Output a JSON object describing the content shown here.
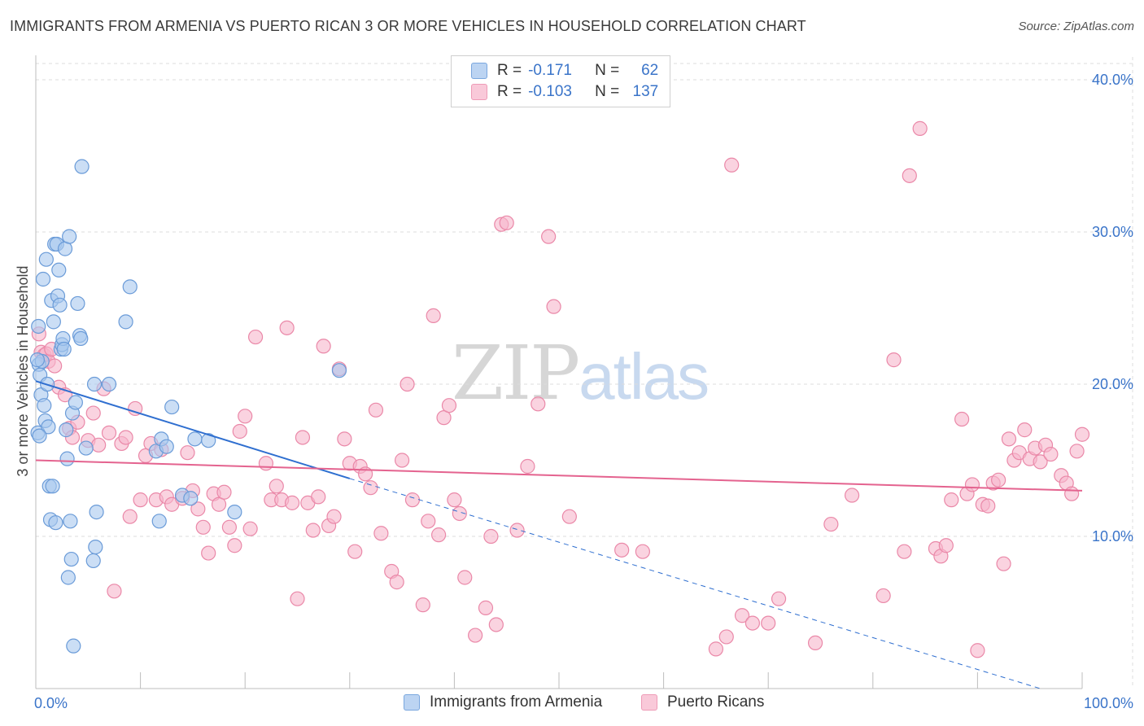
{
  "title": "IMMIGRANTS FROM ARMENIA VS PUERTO RICAN 3 OR MORE VEHICLES IN HOUSEHOLD CORRELATION CHART",
  "source": "Source: ZipAtlas.com",
  "watermark": {
    "zip": "ZIP",
    "atlas": "atlas"
  },
  "legend": {
    "rows": [
      {
        "r_label": "R =",
        "r_value": "-0.171",
        "n_label": "N =",
        "n_value": "62"
      },
      {
        "r_label": "R =",
        "r_value": "-0.103",
        "n_label": "N =",
        "n_value": "137"
      }
    ]
  },
  "colors": {
    "armenia_fill": "#a9c8ee",
    "armenia_stroke": "#6a9bd8",
    "armenia_line": "#2f6fd0",
    "pr_fill": "#f6b5cb",
    "pr_stroke": "#ea88a8",
    "pr_line": "#e4638f",
    "axis_label": "#3a74c9",
    "grid": "#dcdcdc"
  },
  "chart_data": {
    "type": "scatter",
    "title": "IMMIGRANTS FROM ARMENIA VS PUERTO RICAN 3 OR MORE VEHICLES IN HOUSEHOLD CORRELATION CHART",
    "xlabel": "",
    "ylabel": "3 or more Vehicles in Household",
    "xlim": [
      0,
      100
    ],
    "ylim": [
      0,
      41.5
    ],
    "x_tick_labels": [
      "0.0%",
      "100.0%"
    ],
    "y_ticks": [
      10,
      20,
      30,
      40
    ],
    "y_tick_labels": [
      "10.0%",
      "20.0%",
      "30.0%",
      "40.0%"
    ],
    "grid": true,
    "series": [
      {
        "name": "Immigrants from Armenia",
        "r": -0.171,
        "n": 62,
        "trend": {
          "x0": 0,
          "y0": 20.2,
          "x1": 30,
          "y1": 13.8,
          "dashed_to_x": 96,
          "dashed_y_end": 0
        },
        "points": [
          [
            0.2,
            16.8
          ],
          [
            0.3,
            21.3
          ],
          [
            0.4,
            20.6
          ],
          [
            0.5,
            19.3
          ],
          [
            0.6,
            21.5
          ],
          [
            0.7,
            26.9
          ],
          [
            0.8,
            18.6
          ],
          [
            0.9,
            17.6
          ],
          [
            1.0,
            28.2
          ],
          [
            1.1,
            20.0
          ],
          [
            1.2,
            17.2
          ],
          [
            1.3,
            13.3
          ],
          [
            1.4,
            11.1
          ],
          [
            1.5,
            25.5
          ],
          [
            1.6,
            13.3
          ],
          [
            1.7,
            24.1
          ],
          [
            1.8,
            29.2
          ],
          [
            1.9,
            10.9
          ],
          [
            2.0,
            29.2
          ],
          [
            2.1,
            25.8
          ],
          [
            2.2,
            27.5
          ],
          [
            2.3,
            25.2
          ],
          [
            2.4,
            22.3
          ],
          [
            2.5,
            22.6
          ],
          [
            2.6,
            23.0
          ],
          [
            2.7,
            22.3
          ],
          [
            2.8,
            28.9
          ],
          [
            2.9,
            17.0
          ],
          [
            3.0,
            15.1
          ],
          [
            3.1,
            7.3
          ],
          [
            3.2,
            29.7
          ],
          [
            3.3,
            11.0
          ],
          [
            3.4,
            8.5
          ],
          [
            3.5,
            18.1
          ],
          [
            3.6,
            2.8
          ],
          [
            3.8,
            18.8
          ],
          [
            4.0,
            25.3
          ],
          [
            4.2,
            23.2
          ],
          [
            4.3,
            23.0
          ],
          [
            4.4,
            34.3
          ],
          [
            4.8,
            15.8
          ],
          [
            5.5,
            8.4
          ],
          [
            5.6,
            20.0
          ],
          [
            5.7,
            9.3
          ],
          [
            5.8,
            11.6
          ],
          [
            7.0,
            20.0
          ],
          [
            8.6,
            24.1
          ],
          [
            9.0,
            26.4
          ],
          [
            11.5,
            15.6
          ],
          [
            11.8,
            11.0
          ],
          [
            12.0,
            16.4
          ],
          [
            12.5,
            15.9
          ],
          [
            13.0,
            18.5
          ],
          [
            14.0,
            12.7
          ],
          [
            14.8,
            12.5
          ],
          [
            15.2,
            16.4
          ],
          [
            16.5,
            16.3
          ],
          [
            19.0,
            11.6
          ],
          [
            29.0,
            20.9
          ],
          [
            0.15,
            21.6
          ],
          [
            0.25,
            23.8
          ],
          [
            0.35,
            16.6
          ]
        ]
      },
      {
        "name": "Puerto Ricans",
        "r": -0.103,
        "n": 137,
        "trend": {
          "x0": 0,
          "y0": 15.0,
          "x1": 100,
          "y1": 13.0
        },
        "points": [
          [
            0.3,
            23.3
          ],
          [
            0.5,
            22.1
          ],
          [
            0.8,
            21.9
          ],
          [
            1.0,
            22.0
          ],
          [
            1.2,
            21.5
          ],
          [
            1.5,
            22.3
          ],
          [
            1.8,
            21.2
          ],
          [
            2.2,
            19.8
          ],
          [
            2.8,
            19.3
          ],
          [
            3.2,
            17.1
          ],
          [
            3.5,
            16.5
          ],
          [
            4.0,
            17.5
          ],
          [
            5.0,
            16.3
          ],
          [
            5.5,
            18.1
          ],
          [
            6.0,
            16.0
          ],
          [
            6.5,
            19.7
          ],
          [
            7.0,
            16.8
          ],
          [
            7.5,
            6.4
          ],
          [
            8.2,
            16.1
          ],
          [
            8.6,
            16.5
          ],
          [
            9.0,
            11.3
          ],
          [
            9.5,
            18.4
          ],
          [
            10.0,
            12.4
          ],
          [
            10.5,
            15.3
          ],
          [
            11.0,
            16.1
          ],
          [
            11.5,
            12.4
          ],
          [
            12.0,
            15.7
          ],
          [
            12.5,
            12.6
          ],
          [
            13.0,
            12.1
          ],
          [
            14.0,
            12.5
          ],
          [
            14.5,
            15.5
          ],
          [
            15.0,
            13.0
          ],
          [
            15.5,
            11.8
          ],
          [
            16.0,
            10.6
          ],
          [
            16.5,
            8.9
          ],
          [
            17.0,
            12.8
          ],
          [
            17.5,
            12.1
          ],
          [
            18.0,
            12.9
          ],
          [
            18.5,
            10.6
          ],
          [
            19.0,
            9.4
          ],
          [
            19.5,
            16.9
          ],
          [
            20.0,
            17.9
          ],
          [
            20.5,
            10.5
          ],
          [
            21.0,
            23.1
          ],
          [
            22.0,
            14.8
          ],
          [
            22.5,
            12.4
          ],
          [
            23.0,
            13.3
          ],
          [
            23.5,
            12.4
          ],
          [
            24.0,
            23.7
          ],
          [
            24.5,
            12.2
          ],
          [
            25.0,
            5.9
          ],
          [
            25.5,
            16.5
          ],
          [
            26.0,
            12.2
          ],
          [
            26.5,
            10.4
          ],
          [
            27.0,
            12.6
          ],
          [
            27.5,
            22.5
          ],
          [
            28.0,
            10.7
          ],
          [
            28.5,
            11.3
          ],
          [
            29.0,
            21.0
          ],
          [
            29.5,
            16.4
          ],
          [
            30.0,
            14.8
          ],
          [
            30.5,
            9.0
          ],
          [
            31.0,
            14.6
          ],
          [
            31.5,
            14.1
          ],
          [
            32.0,
            13.2
          ],
          [
            32.5,
            18.3
          ],
          [
            33.0,
            10.2
          ],
          [
            34.0,
            7.7
          ],
          [
            34.5,
            7.0
          ],
          [
            35.0,
            15.0
          ],
          [
            35.5,
            20.0
          ],
          [
            36.0,
            12.4
          ],
          [
            37.0,
            5.5
          ],
          [
            37.5,
            11.0
          ],
          [
            38.0,
            24.5
          ],
          [
            38.5,
            10.1
          ],
          [
            39.0,
            17.8
          ],
          [
            39.5,
            18.6
          ],
          [
            40.0,
            12.4
          ],
          [
            40.5,
            11.5
          ],
          [
            41.0,
            7.3
          ],
          [
            42.0,
            3.5
          ],
          [
            43.0,
            5.3
          ],
          [
            43.5,
            10.0
          ],
          [
            44.0,
            4.2
          ],
          [
            44.5,
            30.5
          ],
          [
            45.0,
            30.6
          ],
          [
            46.0,
            10.4
          ],
          [
            47.0,
            14.6
          ],
          [
            48.0,
            18.7
          ],
          [
            49.0,
            29.7
          ],
          [
            49.5,
            25.1
          ],
          [
            51.0,
            11.3
          ],
          [
            56.0,
            9.1
          ],
          [
            58.0,
            9.0
          ],
          [
            65.0,
            2.6
          ],
          [
            66.0,
            3.4
          ],
          [
            66.5,
            34.4
          ],
          [
            67.5,
            4.8
          ],
          [
            68.5,
            4.3
          ],
          [
            70.0,
            4.3
          ],
          [
            71.0,
            5.9
          ],
          [
            74.5,
            3.0
          ],
          [
            76.0,
            10.8
          ],
          [
            78.0,
            12.7
          ],
          [
            81.0,
            6.1
          ],
          [
            82.0,
            21.6
          ],
          [
            83.0,
            9.0
          ],
          [
            83.5,
            33.7
          ],
          [
            84.5,
            36.8
          ],
          [
            86.0,
            9.2
          ],
          [
            86.5,
            8.7
          ],
          [
            87.0,
            9.4
          ],
          [
            87.5,
            12.4
          ],
          [
            88.5,
            17.7
          ],
          [
            89.0,
            12.8
          ],
          [
            89.5,
            13.4
          ],
          [
            90.0,
            2.5
          ],
          [
            90.5,
            12.1
          ],
          [
            91.0,
            12.0
          ],
          [
            91.5,
            13.5
          ],
          [
            92.0,
            13.7
          ],
          [
            92.5,
            8.2
          ],
          [
            93.0,
            16.4
          ],
          [
            93.5,
            15.0
          ],
          [
            94.0,
            15.5
          ],
          [
            94.5,
            17.0
          ],
          [
            95.0,
            15.1
          ],
          [
            95.5,
            15.8
          ],
          [
            96.0,
            14.9
          ],
          [
            96.5,
            16.0
          ],
          [
            97.0,
            15.4
          ],
          [
            98.0,
            14.0
          ],
          [
            98.5,
            13.5
          ],
          [
            99.0,
            12.8
          ],
          [
            99.5,
            15.6
          ],
          [
            100.0,
            16.7
          ]
        ]
      }
    ]
  },
  "bottom_legend": {
    "items": [
      "Immigrants from Armenia",
      "Puerto Ricans"
    ]
  }
}
